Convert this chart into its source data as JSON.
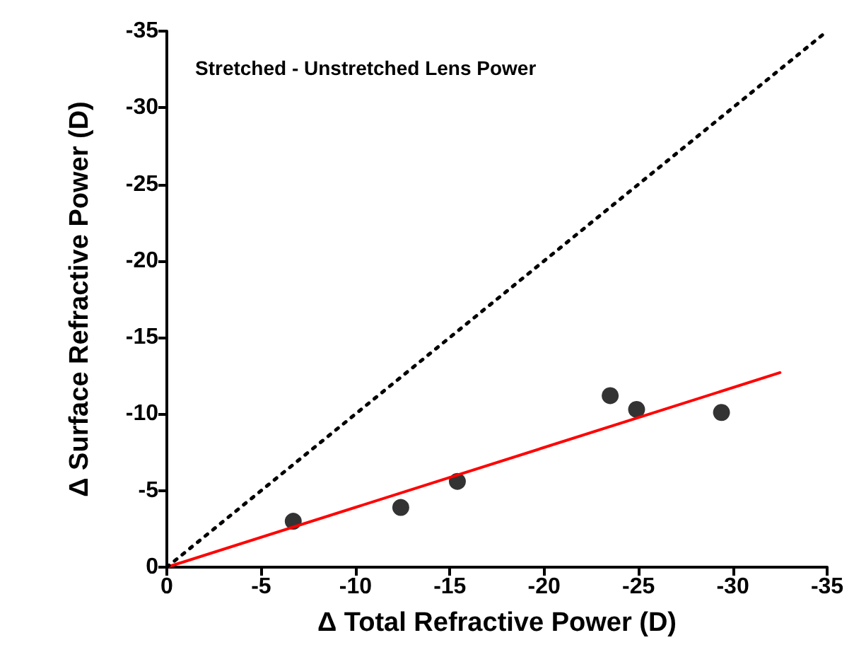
{
  "chart_data": {
    "type": "scatter",
    "title": "Stretched - Unstretched Lens Power",
    "xlabel": "Δ Total Refractive Power (D)",
    "ylabel": "Δ Surface Refractive Power (D)",
    "xlim": [
      0,
      -35
    ],
    "ylim": [
      0,
      -35
    ],
    "xticks": [
      0,
      -5,
      -10,
      -15,
      -20,
      -25,
      -30,
      -35
    ],
    "yticks": [
      0,
      -5,
      -10,
      -15,
      -20,
      -25,
      -30,
      -35
    ],
    "grid": false,
    "series": [
      {
        "color": "#000000",
        "marker": "circle",
        "x": [
          -6.7,
          -12.4,
          -15.4,
          -23.5,
          -24.9,
          -29.4
        ],
        "values": [
          -3.0,
          -3.9,
          -5.6,
          -11.2,
          -10.3,
          -10.1
        ]
      },
      {
        "type": "line",
        "color": "#ff0000",
        "marker": "none",
        "line_style": "solid",
        "x": [
          0,
          -32.5
        ],
        "values": [
          0,
          -12.7
        ]
      },
      {
        "type": "line",
        "color": "#000000",
        "marker": "none",
        "line_style": "dotted",
        "x": [
          0,
          -35
        ],
        "values": [
          0,
          -35
        ]
      }
    ]
  }
}
